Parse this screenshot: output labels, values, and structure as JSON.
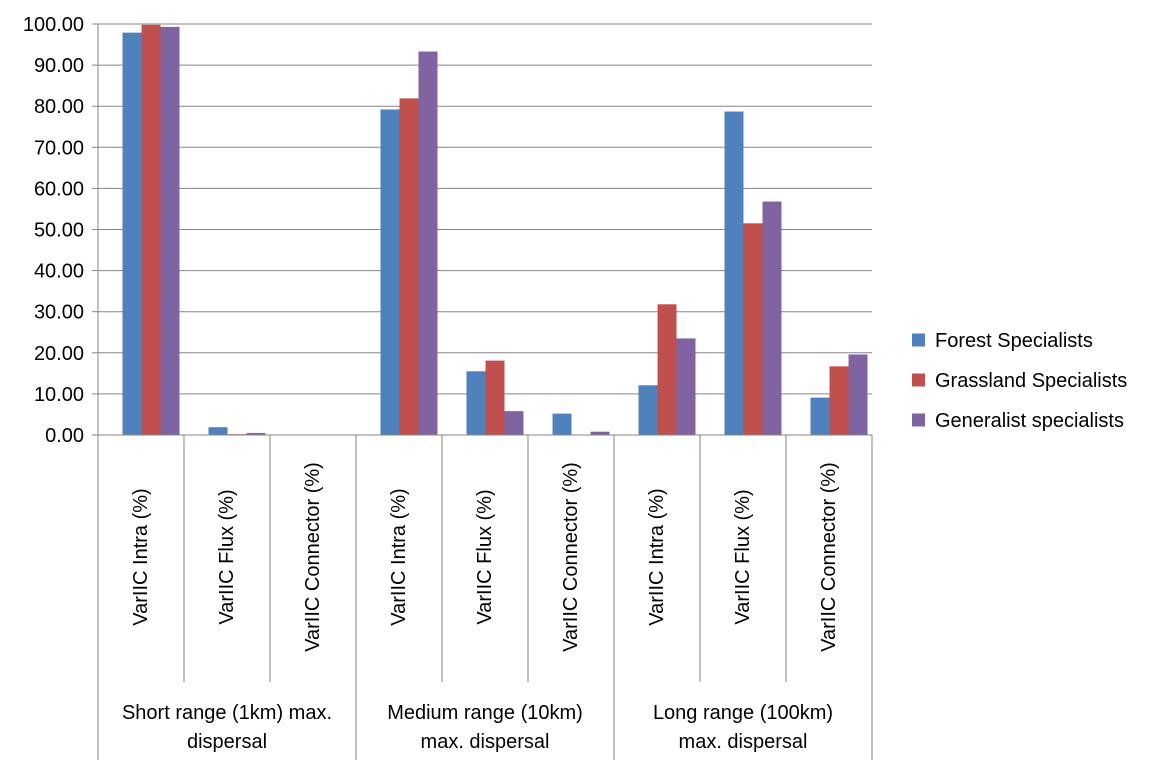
{
  "chart_data": {
    "type": "bar",
    "title": "",
    "xlabel": "",
    "ylabel": "",
    "ylim": [
      0,
      100
    ],
    "y_tick_step": 10,
    "y_tick_format": "0.00",
    "grid": "horizontal",
    "legend_position": "right",
    "groups": [
      "Short range (1km) max. dispersal",
      "Medium range (10km) max. dispersal",
      "Long range (100km) max. dispersal"
    ],
    "categories": [
      "VarIIC Intra (%)",
      "VarIIC Flux (%)",
      "VarIIC Connector (%)",
      "VarIIC Intra (%)",
      "VarIIC Flux (%)",
      "VarIIC Connector (%)",
      "VarIIC Intra (%)",
      "VarIIC Flux (%)",
      "VarIIC Connector (%)"
    ],
    "series": [
      {
        "name": "Forest Specialists",
        "color": "#4F81BD",
        "values": [
          97.9,
          1.9,
          0.0,
          79.2,
          15.5,
          5.2,
          12.1,
          78.7,
          9.1
        ]
      },
      {
        "name": "Grassland Specialists",
        "color": "#C0504D",
        "values": [
          99.8,
          0.2,
          0.0,
          81.9,
          18.1,
          0.0,
          31.8,
          51.5,
          16.7
        ]
      },
      {
        "name": "Generalist specialists",
        "color": "#8064A2",
        "values": [
          99.3,
          0.5,
          0.0,
          93.3,
          5.8,
          0.8,
          23.5,
          56.8,
          19.6
        ]
      }
    ]
  }
}
